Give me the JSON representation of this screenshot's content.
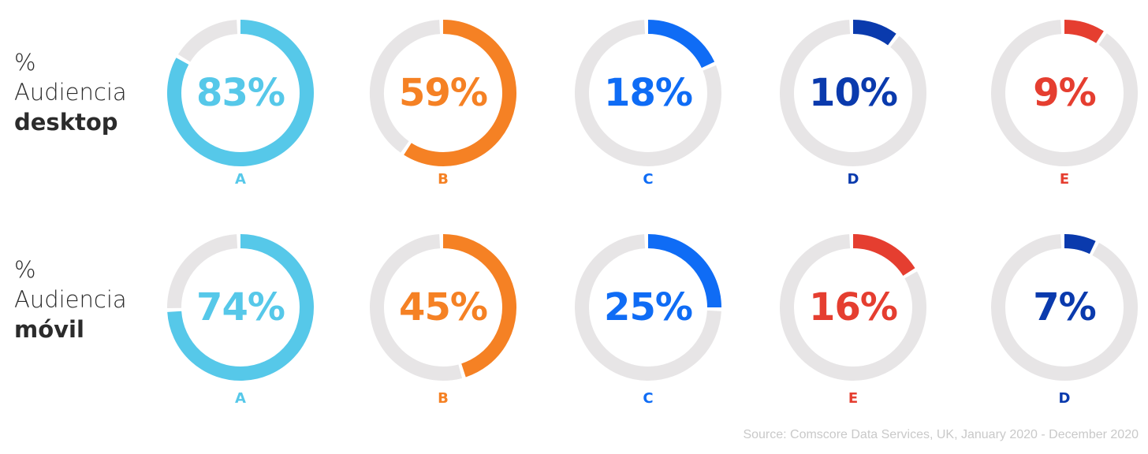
{
  "rows": [
    {
      "prefix": "%",
      "label": "Audiencia",
      "device": "desktop"
    },
    {
      "prefix": "%",
      "label": "Audiencia",
      "device": "móvil"
    }
  ],
  "colors": {
    "track": "#e7e5e6",
    "A": "#56c8e9",
    "B": "#f58124",
    "C": "#0f6cf5",
    "D": "#0a3aad",
    "E": "#e53e30"
  },
  "chart_data": [
    {
      "type": "donut",
      "title": "% Audiencia desktop",
      "categories": [
        "A",
        "B",
        "C",
        "D",
        "E"
      ],
      "values": [
        83,
        59,
        18,
        10,
        9
      ],
      "labels": [
        "83%",
        "59%",
        "18%",
        "10%",
        "9%"
      ],
      "colors": [
        "#56c8e9",
        "#f58124",
        "#0f6cf5",
        "#0a3aad",
        "#e53e30"
      ]
    },
    {
      "type": "donut",
      "title": "% Audiencia móvil",
      "categories": [
        "A",
        "B",
        "C",
        "E",
        "D"
      ],
      "values": [
        74,
        45,
        25,
        16,
        7
      ],
      "labels": [
        "74%",
        "45%",
        "25%",
        "16%",
        "7%"
      ],
      "colors": [
        "#56c8e9",
        "#f58124",
        "#0f6cf5",
        "#e53e30",
        "#0a3aad"
      ]
    }
  ],
  "source": "Source: Comscore Data Services, UK, January 2020 - December 2020"
}
